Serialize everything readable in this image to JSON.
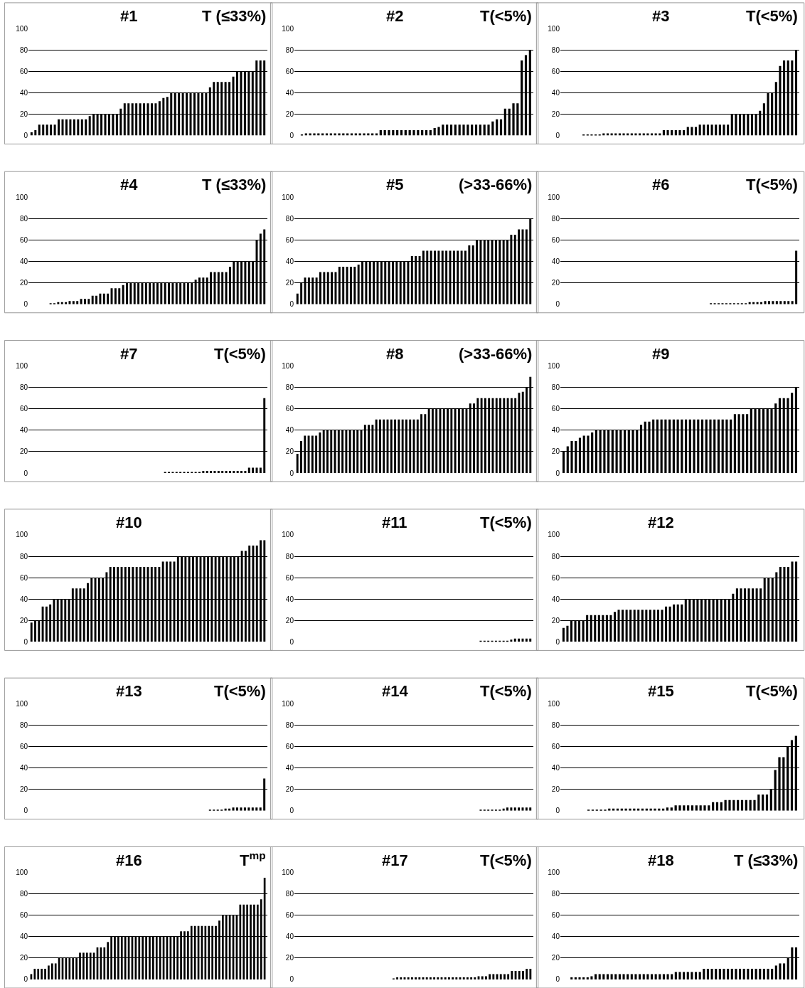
{
  "chart_data": [
    {
      "type": "bar",
      "title": "#1",
      "annotations": [
        "T (≤33%)"
      ],
      "color": "#000000",
      "ylim": [
        0,
        100
      ],
      "yticks": [
        0,
        20,
        40,
        60,
        80,
        100
      ],
      "grid": "y",
      "tick_labels": "y",
      "values": [
        3,
        5,
        10,
        10,
        10,
        10,
        10,
        15,
        15,
        15,
        15,
        15,
        15,
        15,
        15,
        18,
        20,
        20,
        20,
        20,
        20,
        20,
        20,
        25,
        30,
        30,
        30,
        30,
        30,
        30,
        30,
        30,
        30,
        32,
        35,
        36,
        40,
        40,
        40,
        40,
        40,
        40,
        40,
        40,
        40,
        40,
        45,
        50,
        50,
        50,
        50,
        50,
        55,
        60,
        60,
        60,
        60,
        60,
        70,
        70,
        70
      ]
    },
    {
      "type": "bar",
      "title": "#2",
      "annotations": [
        "T(<5%)"
      ],
      "color": "#000000",
      "ylim": [
        0,
        100
      ],
      "yticks": [
        0,
        20,
        40,
        60,
        80,
        100
      ],
      "grid": "y",
      "tick_labels": "y",
      "values": [
        0,
        1,
        2,
        2,
        2,
        2,
        2,
        2,
        2,
        2,
        2,
        2,
        2,
        2,
        2,
        2,
        2,
        2,
        2,
        2,
        5,
        5,
        5,
        5,
        5,
        5,
        5,
        5,
        5,
        5,
        5,
        5,
        5,
        7,
        8,
        10,
        10,
        10,
        10,
        10,
        10,
        10,
        10,
        10,
        10,
        10,
        10,
        13,
        15,
        15,
        25,
        25,
        30,
        30,
        70,
        75,
        80
      ]
    },
    {
      "type": "bar",
      "title": "#3",
      "annotations": [
        "T(<5%)"
      ],
      "color": "#000000",
      "ylim": [
        0,
        100
      ],
      "yticks": [
        0,
        20,
        40,
        60,
        80,
        100
      ],
      "grid": "y",
      "tick_labels": "y",
      "values": [
        0,
        0,
        0,
        0,
        0,
        1,
        1,
        1,
        1,
        1,
        2,
        2,
        2,
        2,
        2,
        2,
        2,
        2,
        2,
        2,
        2,
        2,
        2,
        2,
        2,
        5,
        5,
        5,
        5,
        5,
        5,
        8,
        8,
        8,
        10,
        10,
        10,
        10,
        10,
        10,
        10,
        10,
        20,
        20,
        20,
        20,
        20,
        20,
        20,
        23,
        30,
        40,
        40,
        50,
        65,
        70,
        70,
        70,
        80
      ]
    },
    {
      "type": "bar",
      "title": "#4",
      "annotations": [
        "T (≤33%)"
      ],
      "color": "#000000",
      "ylim": [
        0,
        100
      ],
      "yticks": [
        0,
        20,
        40,
        60,
        80,
        100
      ],
      "grid": "y",
      "tick_labels": "y",
      "values": [
        0,
        0,
        0,
        0,
        0,
        1,
        1,
        2,
        2,
        2,
        3,
        3,
        3,
        5,
        5,
        5,
        8,
        8,
        10,
        10,
        10,
        15,
        15,
        15,
        18,
        20,
        20,
        20,
        20,
        20,
        20,
        20,
        20,
        20,
        20,
        20,
        20,
        20,
        20,
        20,
        20,
        20,
        20,
        23,
        25,
        25,
        25,
        30,
        30,
        30,
        30,
        30,
        35,
        40,
        40,
        40,
        40,
        40,
        40,
        60,
        66,
        70
      ]
    },
    {
      "type": "bar",
      "title": "#5",
      "annotations": [
        "(>33-66%)"
      ],
      "color": "#000000",
      "ylim": [
        0,
        100
      ],
      "yticks": [
        0,
        20,
        40,
        60,
        80,
        100
      ],
      "grid": "y",
      "tick_labels": "y",
      "values": [
        10,
        20,
        25,
        25,
        25,
        25,
        30,
        30,
        30,
        30,
        30,
        35,
        35,
        35,
        35,
        35,
        37,
        40,
        40,
        40,
        40,
        40,
        40,
        40,
        40,
        40,
        40,
        40,
        40,
        40,
        45,
        45,
        45,
        50,
        50,
        50,
        50,
        50,
        50,
        50,
        50,
        50,
        50,
        50,
        50,
        55,
        55,
        60,
        60,
        60,
        60,
        60,
        60,
        60,
        60,
        60,
        65,
        65,
        70,
        70,
        70,
        80
      ]
    },
    {
      "type": "bar",
      "title": "#6",
      "annotations": [
        "T(<5%)"
      ],
      "color": "#000000",
      "ylim": [
        0,
        100
      ],
      "yticks": [
        0,
        20,
        40,
        60,
        80,
        100
      ],
      "grid": "y",
      "tick_labels": "y",
      "values": [
        0,
        0,
        0,
        0,
        0,
        0,
        0,
        0,
        0,
        0,
        0,
        0,
        0,
        0,
        0,
        0,
        0,
        0,
        0,
        0,
        0,
        0,
        0,
        0,
        0,
        0,
        0,
        0,
        0,
        0,
        0,
        0,
        0,
        0,
        0,
        0,
        0,
        0,
        1,
        1,
        1,
        1,
        1,
        1,
        1,
        1,
        1,
        1,
        2,
        2,
        2,
        2,
        3,
        3,
        3,
        3,
        3,
        3,
        3,
        3,
        50
      ]
    },
    {
      "type": "bar",
      "title": "#7",
      "annotations": [
        "T(<5%)"
      ],
      "color": "#000000",
      "ylim": [
        0,
        100
      ],
      "yticks": [
        0,
        20,
        40,
        60,
        80,
        100
      ],
      "grid": "y",
      "tick_labels": "y",
      "values": [
        0,
        0,
        0,
        0,
        0,
        0,
        0,
        0,
        0,
        0,
        0,
        0,
        0,
        0,
        0,
        0,
        0,
        0,
        0,
        0,
        0,
        0,
        0,
        0,
        0,
        0,
        0,
        0,
        0,
        0,
        0,
        0,
        0,
        0,
        0,
        1,
        1,
        1,
        1,
        1,
        1,
        1,
        1,
        1,
        1,
        2,
        2,
        2,
        2,
        2,
        2,
        2,
        2,
        2,
        2,
        2,
        2,
        5,
        5,
        5,
        5,
        70
      ]
    },
    {
      "type": "bar",
      "title": "#8",
      "annotations": [
        "(>33-66%)"
      ],
      "color": "#000000",
      "ylim": [
        0,
        100
      ],
      "yticks": [
        0,
        20,
        40,
        60,
        80,
        100
      ],
      "grid": "y",
      "tick_labels": "y",
      "values": [
        18,
        30,
        35,
        35,
        35,
        35,
        38,
        40,
        40,
        40,
        40,
        40,
        40,
        40,
        40,
        40,
        40,
        40,
        45,
        45,
        45,
        50,
        50,
        50,
        50,
        50,
        50,
        50,
        50,
        50,
        50,
        50,
        50,
        55,
        55,
        60,
        60,
        60,
        60,
        60,
        60,
        60,
        60,
        60,
        60,
        60,
        65,
        65,
        70,
        70,
        70,
        70,
        70,
        70,
        70,
        70,
        70,
        70,
        70,
        75,
        76,
        80,
        90
      ]
    },
    {
      "type": "bar",
      "title": "#9",
      "color": "#000000",
      "ylim": [
        0,
        100
      ],
      "yticks": [
        0,
        20,
        40,
        60,
        80,
        100
      ],
      "grid": "y",
      "tick_labels": "y",
      "values": [
        20,
        25,
        30,
        30,
        33,
        35,
        35,
        38,
        40,
        40,
        40,
        40,
        40,
        40,
        40,
        40,
        40,
        40,
        40,
        45,
        48,
        48,
        50,
        50,
        50,
        50,
        50,
        50,
        50,
        50,
        50,
        50,
        50,
        50,
        50,
        50,
        50,
        50,
        50,
        50,
        50,
        50,
        55,
        55,
        55,
        55,
        60,
        60,
        60,
        60,
        60,
        60,
        65,
        70,
        70,
        70,
        75,
        80
      ]
    },
    {
      "type": "bar",
      "title": "#10",
      "color": "#000000",
      "ylim": [
        0,
        100
      ],
      "yticks": [
        0,
        20,
        40,
        60,
        80,
        100
      ],
      "grid": "y",
      "tick_labels": "y",
      "values": [
        18,
        20,
        20,
        33,
        33,
        35,
        40,
        40,
        40,
        40,
        40,
        50,
        50,
        50,
        50,
        55,
        60,
        60,
        60,
        60,
        65,
        70,
        70,
        70,
        70,
        70,
        70,
        70,
        70,
        70,
        70,
        70,
        70,
        70,
        70,
        75,
        75,
        75,
        75,
        80,
        80,
        80,
        80,
        80,
        80,
        80,
        80,
        80,
        80,
        80,
        80,
        80,
        80,
        80,
        80,
        80,
        85,
        85,
        90,
        90,
        90,
        95,
        95
      ]
    },
    {
      "type": "bar",
      "title": "#11",
      "annotations": [
        "T(<5%)"
      ],
      "color": "#000000",
      "ylim": [
        0,
        100
      ],
      "yticks": [
        0,
        20,
        40,
        60,
        80,
        100
      ],
      "grid": "y",
      "tick_labels": "y",
      "values": [
        0,
        0,
        0,
        0,
        0,
        0,
        0,
        0,
        0,
        0,
        0,
        0,
        0,
        0,
        0,
        0,
        0,
        0,
        0,
        0,
        0,
        0,
        0,
        0,
        0,
        0,
        0,
        0,
        0,
        0,
        0,
        0,
        0,
        0,
        0,
        0,
        0,
        0,
        0,
        0,
        0,
        0,
        0,
        0,
        0,
        0,
        0,
        0,
        1,
        1,
        1,
        1,
        1,
        1,
        1,
        1,
        2,
        3,
        3,
        3,
        3,
        3
      ]
    },
    {
      "type": "bar",
      "title": "#12",
      "color": "#000000",
      "ylim": [
        0,
        100
      ],
      "yticks": [
        0,
        20,
        40,
        60,
        80,
        100
      ],
      "grid": "y",
      "tick_labels": "y",
      "values": [
        13,
        15,
        20,
        20,
        20,
        20,
        25,
        25,
        25,
        25,
        25,
        25,
        25,
        28,
        30,
        30,
        30,
        30,
        30,
        30,
        30,
        30,
        30,
        30,
        30,
        30,
        33,
        33,
        35,
        35,
        35,
        40,
        40,
        40,
        40,
        40,
        40,
        40,
        40,
        40,
        40,
        40,
        40,
        45,
        50,
        50,
        50,
        50,
        50,
        50,
        50,
        60,
        60,
        60,
        65,
        70,
        70,
        70,
        75,
        75
      ]
    },
    {
      "type": "bar",
      "title": "#13",
      "annotations": [
        "T(<5%)"
      ],
      "color": "#000000",
      "ylim": [
        0,
        100
      ],
      "yticks": [
        0,
        20,
        40,
        60,
        80,
        100
      ],
      "grid": "y",
      "tick_labels": "y",
      "values": [
        0,
        0,
        0,
        0,
        0,
        0,
        0,
        0,
        0,
        0,
        0,
        0,
        0,
        0,
        0,
        0,
        0,
        0,
        0,
        0,
        0,
        0,
        0,
        0,
        0,
        0,
        0,
        0,
        0,
        0,
        0,
        0,
        0,
        0,
        0,
        0,
        0,
        0,
        0,
        0,
        0,
        0,
        0,
        0,
        0,
        0,
        1,
        1,
        1,
        1,
        2,
        2,
        3,
        3,
        3,
        3,
        3,
        3,
        3,
        3,
        30
      ]
    },
    {
      "type": "bar",
      "title": "#14",
      "annotations": [
        "T(<5%)"
      ],
      "color": "#000000",
      "ylim": [
        0,
        100
      ],
      "yticks": [
        0,
        20,
        40,
        60,
        80,
        100
      ],
      "grid": "y",
      "tick_labels": "y",
      "values": [
        0,
        0,
        0,
        0,
        0,
        0,
        0,
        0,
        0,
        0,
        0,
        0,
        0,
        0,
        0,
        0,
        0,
        0,
        0,
        0,
        0,
        0,
        0,
        0,
        0,
        0,
        0,
        0,
        0,
        0,
        0,
        0,
        0,
        0,
        0,
        0,
        0,
        0,
        0,
        0,
        0,
        0,
        0,
        0,
        0,
        0,
        0,
        0,
        1,
        1,
        1,
        1,
        1,
        1,
        2,
        3,
        3,
        3,
        3,
        3,
        3,
        3
      ]
    },
    {
      "type": "bar",
      "title": "#15",
      "annotations": [
        "T(<5%)"
      ],
      "color": "#000000",
      "ylim": [
        0,
        100
      ],
      "yticks": [
        0,
        20,
        40,
        60,
        80,
        100
      ],
      "grid": "y",
      "tick_labels": "y",
      "values": [
        0,
        0,
        0,
        0,
        0,
        0,
        1,
        1,
        1,
        1,
        1,
        2,
        2,
        2,
        2,
        2,
        2,
        2,
        2,
        2,
        2,
        2,
        2,
        2,
        2,
        3,
        3,
        5,
        5,
        5,
        5,
        5,
        5,
        5,
        5,
        5,
        8,
        8,
        8,
        10,
        10,
        10,
        10,
        10,
        10,
        10,
        10,
        15,
        15,
        15,
        20,
        38,
        50,
        50,
        60,
        66,
        70
      ]
    },
    {
      "type": "bar",
      "title": "#16",
      "annotations": [
        "T$^{mp}$"
      ],
      "color": "#000000",
      "ylim": [
        0,
        100
      ],
      "yticks": [
        0,
        20,
        40,
        60,
        80,
        100
      ],
      "grid": "y",
      "tick_labels": "y",
      "values": [
        5,
        10,
        10,
        10,
        10,
        13,
        15,
        15,
        20,
        20,
        20,
        20,
        20,
        20,
        25,
        25,
        25,
        25,
        25,
        30,
        30,
        30,
        35,
        40,
        40,
        40,
        40,
        40,
        40,
        40,
        40,
        40,
        40,
        40,
        40,
        40,
        40,
        40,
        40,
        40,
        40,
        40,
        40,
        45,
        45,
        45,
        50,
        50,
        50,
        50,
        50,
        50,
        50,
        50,
        55,
        60,
        60,
        60,
        60,
        60,
        70,
        70,
        70,
        70,
        70,
        70,
        75,
        95
      ]
    },
    {
      "type": "bar",
      "title": "#17",
      "annotations": [
        "T(<5%)"
      ],
      "color": "#000000",
      "ylim": [
        0,
        100
      ],
      "yticks": [
        0,
        20,
        40,
        60,
        80,
        100
      ],
      "grid": "y",
      "tick_labels": "y",
      "values": [
        0,
        0,
        0,
        0,
        0,
        0,
        0,
        0,
        0,
        0,
        0,
        0,
        0,
        0,
        0,
        0,
        0,
        0,
        0,
        0,
        0,
        0,
        0,
        0,
        0,
        0,
        1,
        2,
        2,
        2,
        2,
        2,
        2,
        2,
        2,
        2,
        2,
        2,
        2,
        2,
        2,
        2,
        2,
        2,
        2,
        2,
        2,
        2,
        2,
        3,
        3,
        3,
        5,
        5,
        5,
        5,
        5,
        5,
        8,
        8,
        8,
        8,
        10,
        10
      ]
    },
    {
      "type": "bar",
      "title": "#18",
      "annotations": [
        "T (≤33%)"
      ],
      "color": "#000000",
      "ylim": [
        0,
        100
      ],
      "yticks": [
        0,
        20,
        40,
        60,
        80,
        100
      ],
      "grid": "y",
      "tick_labels": "y",
      "values": [
        0,
        0,
        2,
        2,
        2,
        2,
        2,
        3,
        5,
        5,
        5,
        5,
        5,
        5,
        5,
        5,
        5,
        5,
        5,
        5,
        5,
        5,
        5,
        5,
        5,
        5,
        5,
        5,
        7,
        7,
        7,
        7,
        7,
        7,
        7,
        10,
        10,
        10,
        10,
        10,
        10,
        10,
        10,
        10,
        10,
        10,
        10,
        10,
        10,
        10,
        10,
        10,
        10,
        13,
        15,
        15,
        20,
        30,
        30
      ]
    }
  ]
}
